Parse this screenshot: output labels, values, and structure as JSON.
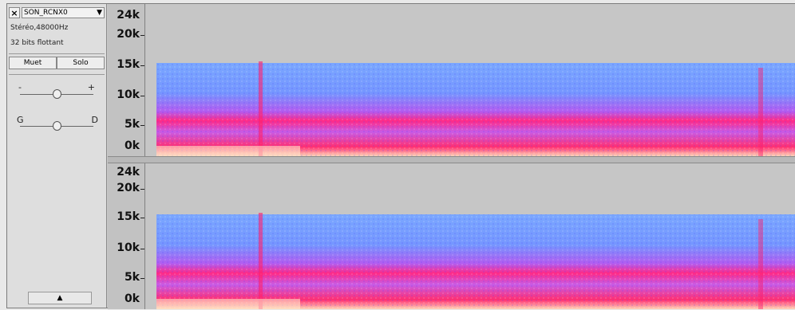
{
  "track": {
    "close_glyph": "×",
    "name": "SON_RCNX0",
    "dropdown_glyph": "▼",
    "format": "Stéréo,48000Hz",
    "bit_depth": "32 bits flottant",
    "mute_label": "Muet",
    "solo_label": "Solo",
    "gain": {
      "minus_label": "-",
      "plus_label": "+"
    },
    "pan": {
      "left_label": "G",
      "right_label": "D"
    },
    "collapse_glyph": "▲"
  },
  "ruler_labels": [
    "24k",
    "20k",
    "15k",
    "10k",
    "5k",
    "0k"
  ],
  "colors": {
    "spectrogram_high": "#6f9bff",
    "spectrogram_mid": "#ff2a7a",
    "spectrogram_low": "#ffe0c0",
    "background": "#c6c6c6"
  }
}
